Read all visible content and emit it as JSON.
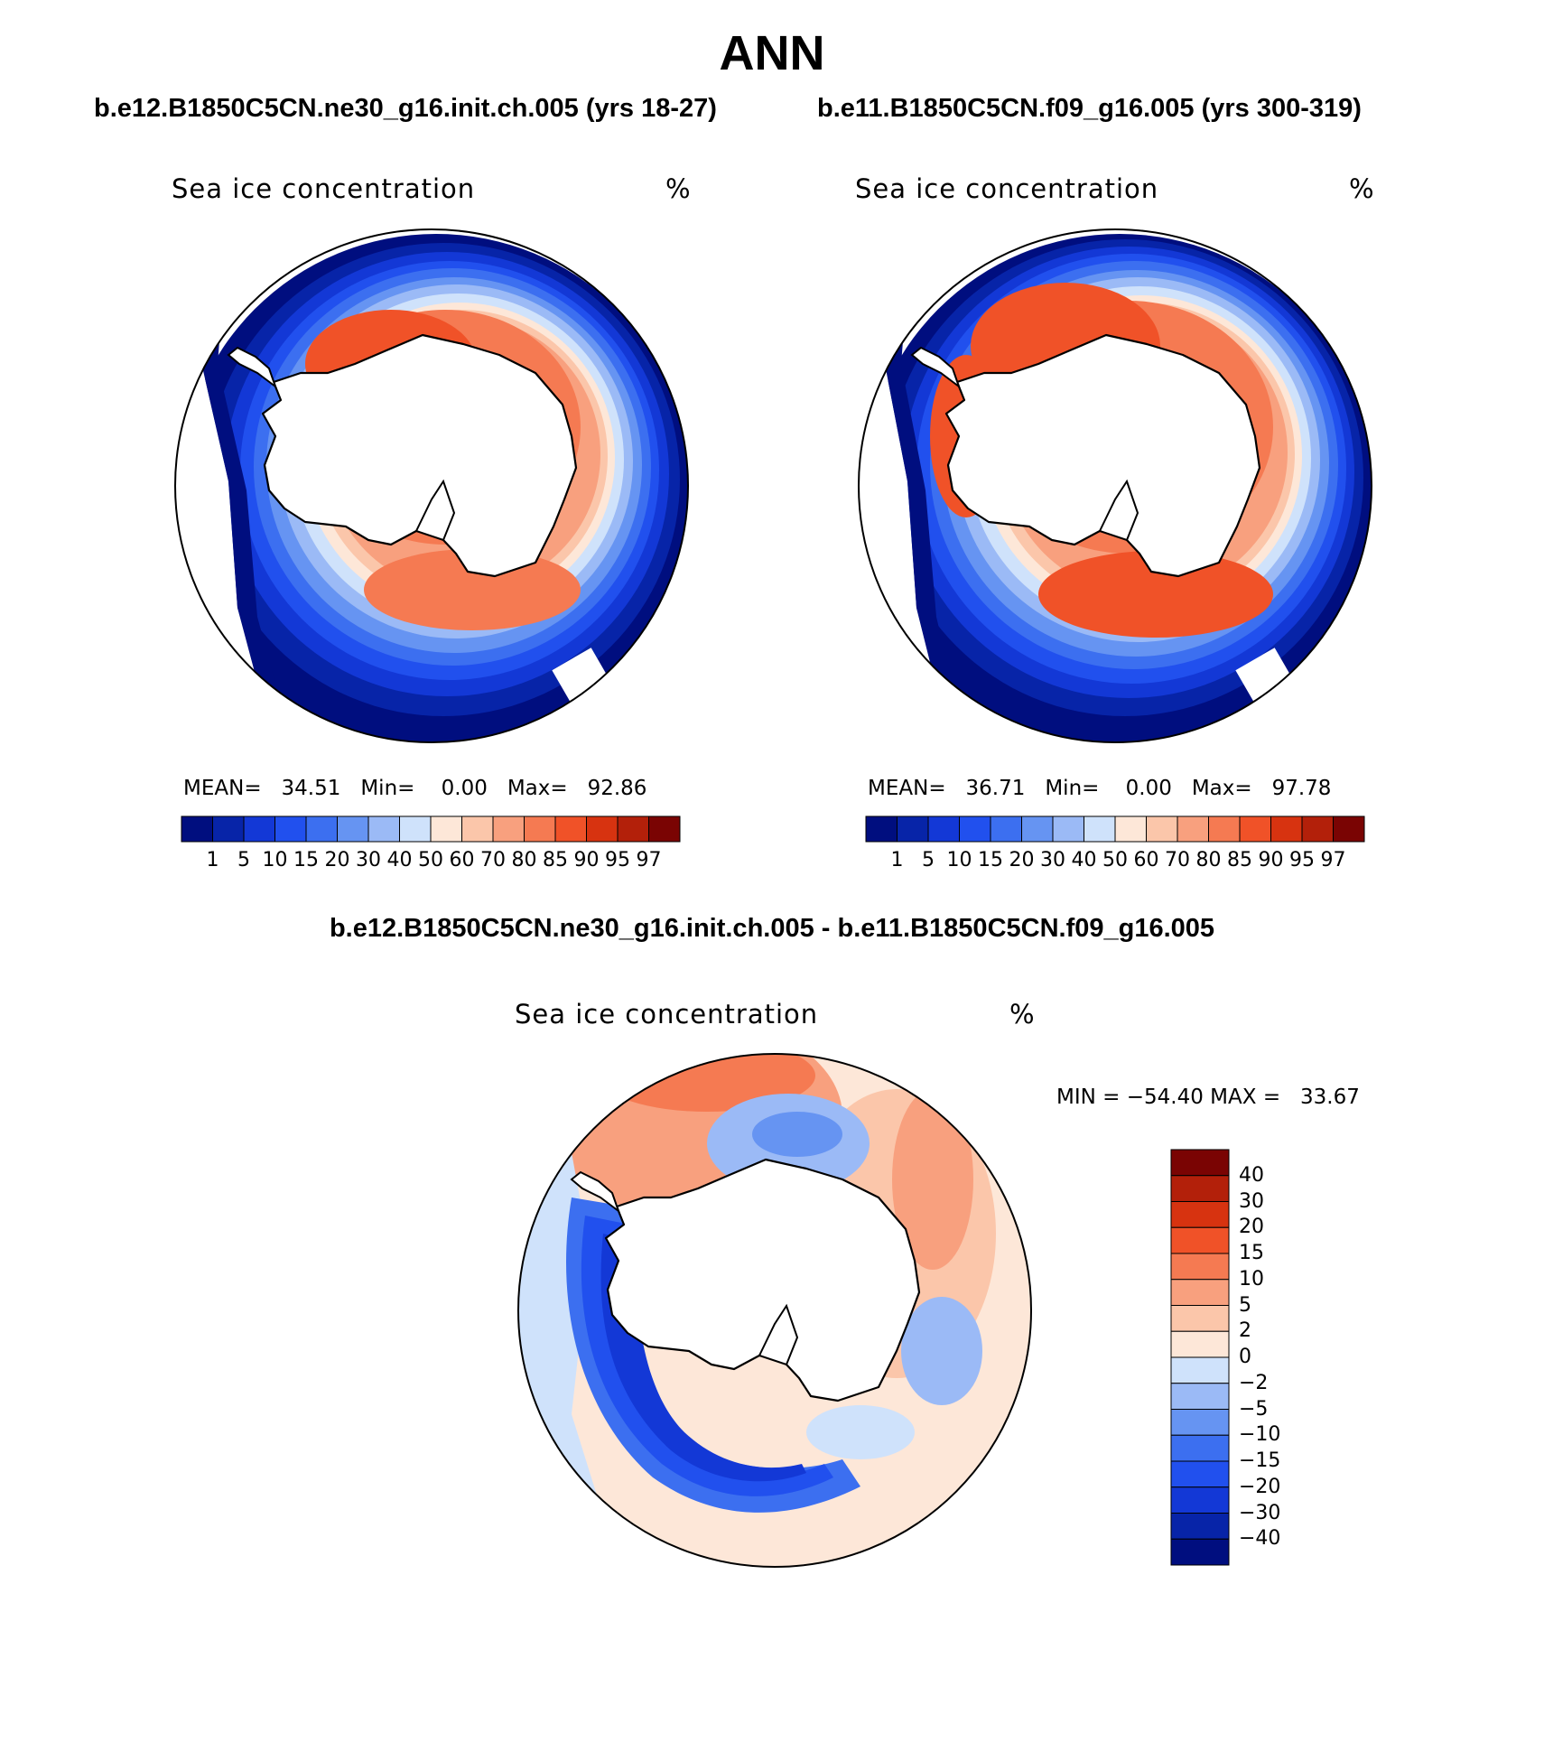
{
  "title": "ANN",
  "panels": [
    {
      "case": "b.e12.B1850C5CN.ne30_g16.init.ch.005 (yrs 18-27)",
      "variable": "Sea ice concentration",
      "units": "%",
      "mean_label": "MEAN=",
      "mean": "34.51",
      "min_label": "Min=",
      "min": "0.00",
      "max_label": "Max=",
      "max": "92.86"
    },
    {
      "case": "b.e11.B1850C5CN.f09_g16.005 (yrs 300-319)",
      "variable": "Sea ice concentration",
      "units": "%",
      "mean_label": "MEAN=",
      "mean": "36.71",
      "min_label": "Min=",
      "min": "0.00",
      "max_label": "Max=",
      "max": "97.78"
    }
  ],
  "diff_panel": {
    "title": "b.e12.B1850C5CN.ne30_g16.init.ch.005 - b.e11.B1850C5CN.f09_g16.005",
    "variable": "Sea ice concentration",
    "units": "%",
    "min_label": "MIN =",
    "min": "−54.40",
    "max_label": "MAX =",
    "max": "33.67"
  },
  "colorbar_main": {
    "colors": [
      "#000e7f",
      "#0724a8",
      "#1338d6",
      "#2150ee",
      "#3c6ff0",
      "#6694f2",
      "#9bbaf6",
      "#cfe2fb",
      "#fde7d8",
      "#fbc6aa",
      "#f8a07e",
      "#f57a52",
      "#f05228",
      "#d73310",
      "#b3200a",
      "#7a0403"
    ],
    "labels": [
      "1",
      "5",
      "10",
      "15",
      "20",
      "30",
      "40",
      "50",
      "60",
      "70",
      "80",
      "85",
      "90",
      "95",
      "97"
    ]
  },
  "colorbar_diff": {
    "colors_top_to_bottom": [
      "#7a0403",
      "#b3200a",
      "#d73310",
      "#f05228",
      "#f57a52",
      "#f8a07e",
      "#fbc6aa",
      "#fde7d8",
      "#cfe2fb",
      "#9bbaf6",
      "#6694f2",
      "#3c6ff0",
      "#2150ee",
      "#1338d6",
      "#0724a8",
      "#000e7f"
    ],
    "labels_top_to_bottom": [
      "40",
      "30",
      "20",
      "15",
      "10",
      "5",
      "2",
      "0",
      "−2",
      "−5",
      "−10",
      "−15",
      "−20",
      "−30",
      "−40"
    ]
  }
}
